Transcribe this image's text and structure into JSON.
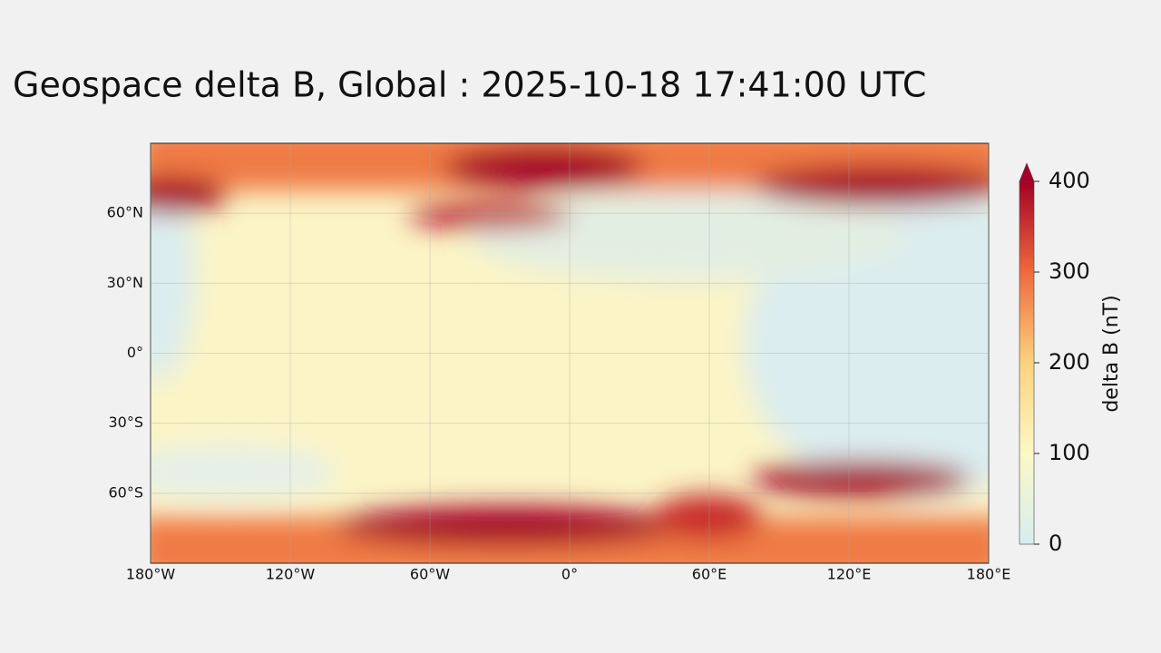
{
  "title": "Geospace delta B, Global : 2025-10-18  17:41:00 UTC",
  "map": {
    "xlim": [
      -180,
      180
    ],
    "ylim": [
      -90,
      90
    ],
    "xticks": [
      {
        "value": -180,
        "label": "180°W"
      },
      {
        "value": -120,
        "label": "120°W"
      },
      {
        "value": -60,
        "label": "60°W"
      },
      {
        "value": 0,
        "label": "0°"
      },
      {
        "value": 60,
        "label": "60°E"
      },
      {
        "value": 120,
        "label": "120°E"
      },
      {
        "value": 180,
        "label": "180°E"
      }
    ],
    "yticks": [
      {
        "value": 60,
        "label": "60°N"
      },
      {
        "value": 30,
        "label": "30°N"
      },
      {
        "value": 0,
        "label": "0°"
      },
      {
        "value": -30,
        "label": "30°S"
      },
      {
        "value": -60,
        "label": "60°S"
      }
    ]
  },
  "colorbar": {
    "label": "delta B (nT)",
    "lim": [
      0,
      400
    ],
    "ticks": [
      0,
      100,
      200,
      300,
      400
    ]
  }
}
